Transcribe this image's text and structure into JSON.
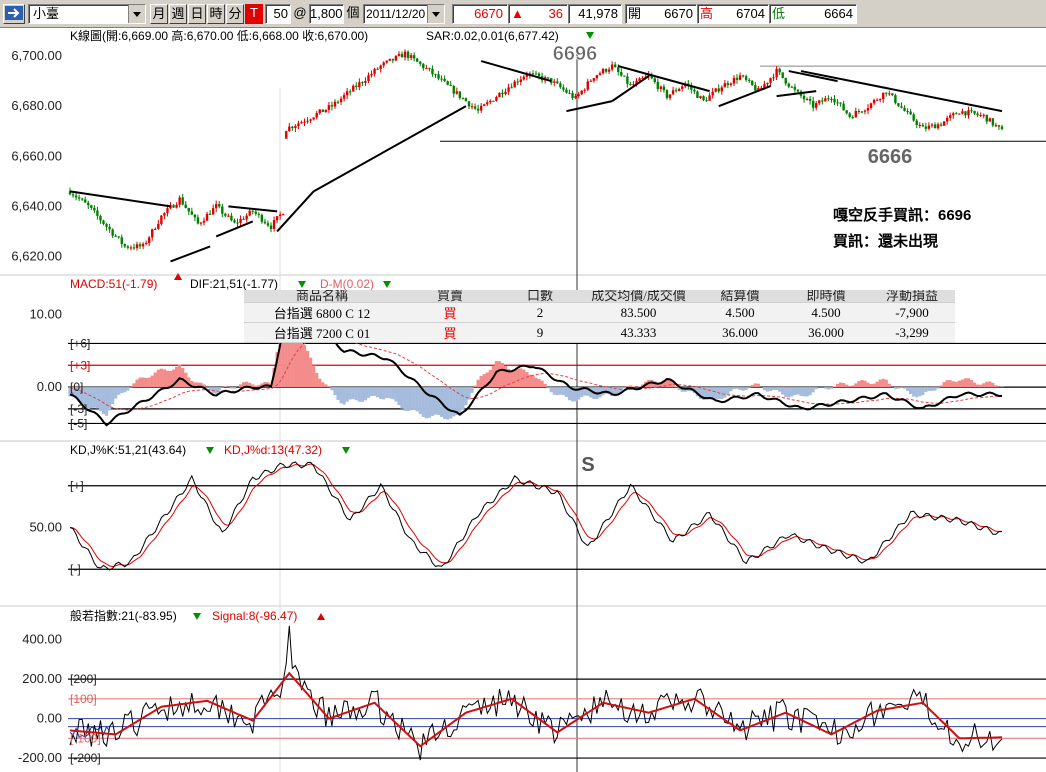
{
  "toolbar": {
    "symbol": "小臺",
    "periods": [
      "月",
      "週",
      "日",
      "時",
      "分"
    ],
    "t_label": "T",
    "qty": "50",
    "at": "@",
    "price_input": "1,800",
    "unit": "個",
    "date": "2011/12/20",
    "last": "6670",
    "change": "36",
    "volume": "41,978",
    "open_label": "開",
    "open": "6670",
    "high_label": "高",
    "high": "6704",
    "low_label": "低",
    "low": "6664"
  },
  "colors": {
    "up": "#e00000",
    "down": "#008000",
    "macd_pos": "#f48c8c",
    "macd_neg": "#a6bcdc",
    "kd_d": "#e00000"
  },
  "panels": {
    "price": {
      "header_a": "K線圖(開:6,669.00 高:6,670.00 低:6,668.00 收:6,670.00)",
      "header_b": "SAR:0.02,0.01(6,677.42)",
      "ylim": [
        6613,
        6708
      ],
      "ticks": [
        "6,700.00",
        "6,680.00",
        "6,660.00",
        "6,640.00",
        "6,620.00"
      ],
      "tick_values": [
        6700,
        6680,
        6660,
        6640,
        6620
      ],
      "labels": {
        "peak": "6696",
        "trough": "6666"
      },
      "notes": [
        "嘎空反手買訊：6696",
        "買訊：還未出現"
      ]
    },
    "macd": {
      "header_a": "MACD:51(-1.79)",
      "header_b": "DIF:21,51(-1.77)",
      "header_c": "D-M(0.02)",
      "ylim": [
        -7,
        15
      ],
      "ticks": [
        "10.00",
        "0.00"
      ],
      "tick_values": [
        10,
        0
      ],
      "levels": [
        "[+6]",
        "[+3]",
        "[0]",
        "[-3]",
        "[-5]"
      ],
      "level_values": [
        6,
        3,
        0,
        -3,
        -5
      ]
    },
    "kd": {
      "header_a": "KD,J%K:51,21(43.64)",
      "header_b": "KD,J%d:13(47.32)",
      "marker": "S",
      "ylim": [
        -5,
        110
      ],
      "ticks": [
        "50.00"
      ],
      "tick_values": [
        50
      ],
      "levels": [
        "[+]",
        "[-]"
      ],
      "level_values": [
        80,
        20
      ]
    },
    "cci": {
      "header_a": "般若指數:21(-83.95)",
      "header_b": "Signal:8(-96.47)",
      "ylim": [
        -230,
        560
      ],
      "ticks": [
        "400.00",
        "200.00",
        "0.00",
        "-200.00"
      ],
      "tick_values": [
        400,
        200,
        0,
        -200
      ],
      "levels": [
        "[200]",
        "[100]",
        "[-100]",
        "[-200]"
      ],
      "level_values": [
        200,
        100,
        -100,
        -200
      ]
    }
  },
  "positions": {
    "headers": [
      "商品名稱",
      "買賣",
      "口數",
      "成交均價/成交價",
      "結算價",
      "即時價",
      "浮動損益"
    ],
    "rows": [
      [
        "台指選  6800 C 12",
        "買",
        "2",
        "83.500",
        "4.500",
        "4.500",
        "-7,900"
      ],
      [
        "台指選  7200 C 01",
        "買",
        "9",
        "43.333",
        "36.000",
        "36.000",
        "-3,299"
      ]
    ]
  },
  "chart_data": {
    "type": "candlestick",
    "title": "K線圖",
    "x": "time index (bars, oldest to newest)",
    "price": {
      "ylim": [
        6613,
        6708
      ],
      "close_path": [
        [
          0,
          6646
        ],
        [
          6,
          6640
        ],
        [
          12,
          6632
        ],
        [
          18,
          6624
        ],
        [
          24,
          6624
        ],
        [
          30,
          6636
        ],
        [
          36,
          6643
        ],
        [
          42,
          6633
        ],
        [
          48,
          6640
        ],
        [
          54,
          6633
        ],
        [
          60,
          6638
        ],
        [
          66,
          6632
        ],
        [
          70,
          6638
        ],
        [
          71,
          6671
        ],
        [
          78,
          6675
        ],
        [
          86,
          6680
        ],
        [
          94,
          6688
        ],
        [
          102,
          6696
        ],
        [
          110,
          6701
        ],
        [
          118,
          6694
        ],
        [
          126,
          6686
        ],
        [
          134,
          6678
        ],
        [
          142,
          6686
        ],
        [
          150,
          6693
        ],
        [
          158,
          6690
        ],
        [
          166,
          6683
        ],
        [
          172,
          6692
        ],
        [
          178,
          6696
        ],
        [
          184,
          6688
        ],
        [
          190,
          6692
        ],
        [
          196,
          6684
        ],
        [
          202,
          6689
        ],
        [
          208,
          6682
        ],
        [
          214,
          6688
        ],
        [
          220,
          6692
        ],
        [
          226,
          6686
        ],
        [
          232,
          6694
        ],
        [
          238,
          6686
        ],
        [
          244,
          6680
        ],
        [
          250,
          6684
        ],
        [
          256,
          6676
        ],
        [
          262,
          6680
        ],
        [
          268,
          6686
        ],
        [
          274,
          6678
        ],
        [
          280,
          6671
        ],
        [
          286,
          6673
        ],
        [
          292,
          6678
        ],
        [
          300,
          6676
        ],
        [
          306,
          6670
        ]
      ],
      "sar_or_trendline_points": [
        [
          0,
          6647
        ],
        [
          28,
          6638
        ],
        [
          60,
          6640
        ],
        [
          100,
          6666
        ],
        [
          140,
          6688
        ]
      ]
    },
    "macd": {
      "ylim": [
        -7,
        15
      ],
      "dif_path": [
        [
          0,
          -1
        ],
        [
          12,
          -5
        ],
        [
          24,
          -2
        ],
        [
          36,
          1
        ],
        [
          48,
          -1
        ],
        [
          60,
          0
        ],
        [
          66,
          0
        ],
        [
          72,
          12
        ],
        [
          90,
          5
        ],
        [
          104,
          4
        ],
        [
          118,
          -1
        ],
        [
          128,
          -4
        ],
        [
          140,
          2
        ],
        [
          152,
          3
        ],
        [
          164,
          0
        ],
        [
          178,
          -1
        ],
        [
          196,
          1
        ],
        [
          212,
          -2
        ],
        [
          226,
          -1
        ],
        [
          240,
          -3
        ],
        [
          254,
          -2
        ],
        [
          268,
          -1
        ],
        [
          280,
          -3
        ],
        [
          292,
          -1
        ],
        [
          306,
          -1
        ]
      ],
      "hist_sign": "positive red, negative blue"
    },
    "kd": {
      "ylim": [
        -5,
        110
      ],
      "k_path": [
        [
          0,
          50
        ],
        [
          10,
          20
        ],
        [
          20,
          25
        ],
        [
          30,
          55
        ],
        [
          40,
          85
        ],
        [
          50,
          45
        ],
        [
          60,
          85
        ],
        [
          70,
          95
        ],
        [
          80,
          95
        ],
        [
          92,
          55
        ],
        [
          102,
          80
        ],
        [
          112,
          40
        ],
        [
          122,
          20
        ],
        [
          134,
          60
        ],
        [
          146,
          85
        ],
        [
          160,
          75
        ],
        [
          170,
          35
        ],
        [
          184,
          80
        ],
        [
          198,
          40
        ],
        [
          210,
          60
        ],
        [
          222,
          25
        ],
        [
          236,
          45
        ],
        [
          248,
          35
        ],
        [
          262,
          25
        ],
        [
          276,
          60
        ],
        [
          292,
          55
        ],
        [
          306,
          45
        ]
      ]
    },
    "cci": {
      "ylim": [
        -230,
        560
      ],
      "signal_path": [
        [
          0,
          -60
        ],
        [
          15,
          -80
        ],
        [
          30,
          60
        ],
        [
          45,
          90
        ],
        [
          60,
          -10
        ],
        [
          72,
          230
        ],
        [
          85,
          0
        ],
        [
          100,
          80
        ],
        [
          115,
          -140
        ],
        [
          130,
          30
        ],
        [
          145,
          100
        ],
        [
          160,
          -70
        ],
        [
          175,
          80
        ],
        [
          190,
          30
        ],
        [
          205,
          100
        ],
        [
          220,
          -60
        ],
        [
          235,
          30
        ],
        [
          250,
          -80
        ],
        [
          265,
          40
        ],
        [
          280,
          80
        ],
        [
          292,
          -100
        ],
        [
          306,
          -95
        ]
      ],
      "spike": 470
    }
  }
}
